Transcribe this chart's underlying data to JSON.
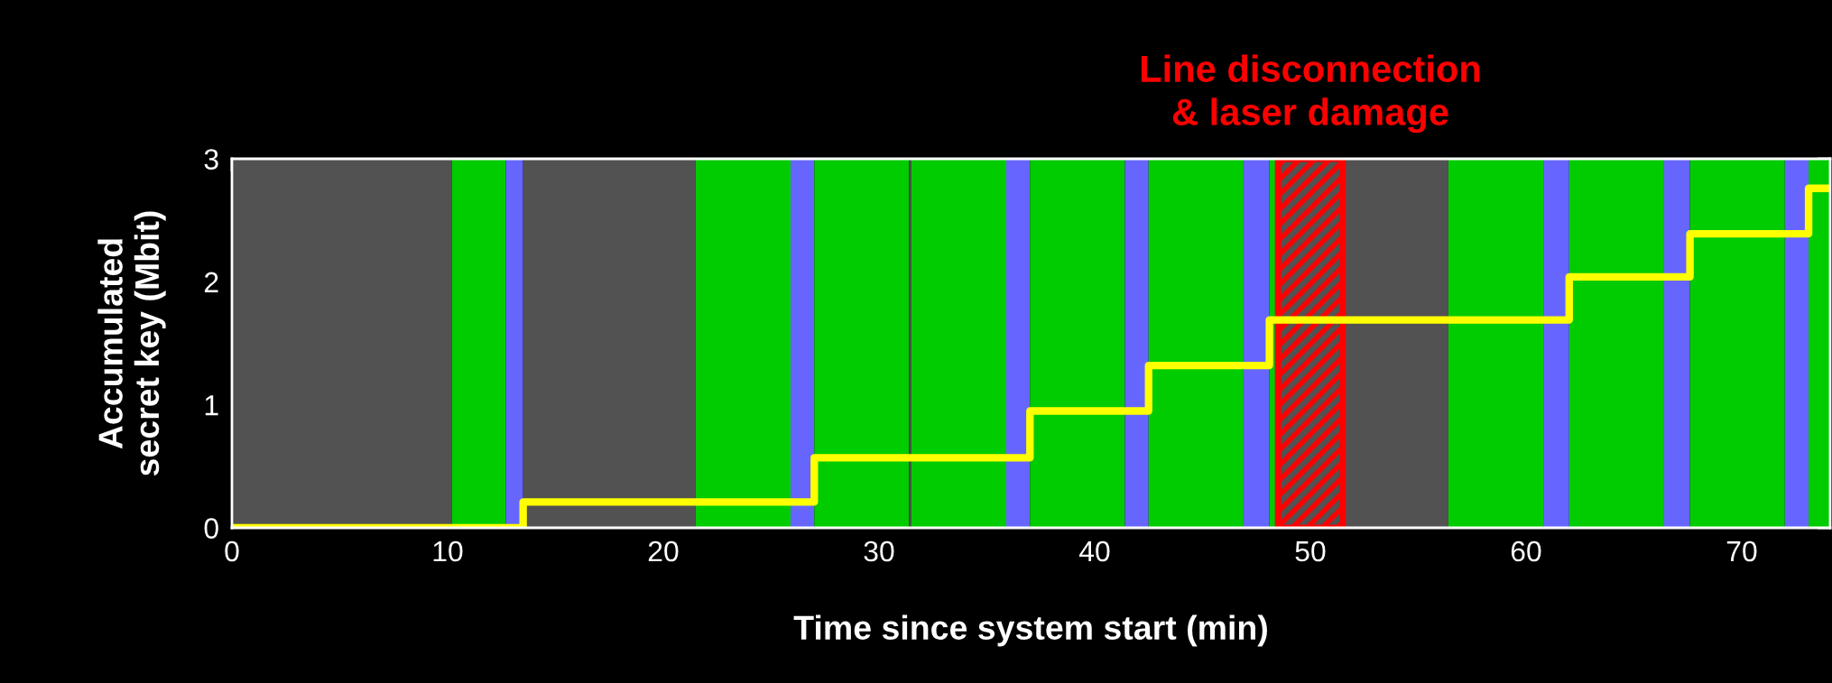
{
  "chart_data": {
    "type": "step",
    "xlabel": "Time since system start (min)",
    "ylabel": "Accumulated\nsecret key (Mbit)",
    "x": [
      0,
      13.5,
      27.0,
      37.0,
      42.5,
      48.1,
      62.0,
      67.6,
      73.1,
      74.1
    ],
    "series": [
      {
        "color": "#ffff00",
        "values": [
          0,
          0.21,
          0.57,
          0.95,
          1.32,
          1.69,
          2.04,
          2.39,
          2.76,
          2.76
        ]
      }
    ],
    "xlim": [
      0,
      74.1
    ],
    "xticks": [
      0,
      {
        "value": 5,
        "label": null
      },
      10,
      {
        "value": 15,
        "label": null
      },
      20,
      {
        "value": 25,
        "label": null
      },
      30,
      {
        "value": 35,
        "label": null
      },
      40,
      {
        "value": 45,
        "label": null
      },
      50,
      {
        "value": 55,
        "label": null
      },
      60,
      {
        "value": 65,
        "label": null
      },
      70
    ],
    "ylim": [
      0,
      3
    ],
    "yticks": [
      0,
      {
        "value": 0.5,
        "label": null
      },
      1,
      {
        "value": 1.5,
        "label": null
      },
      2,
      {
        "value": 2.5,
        "label": null
      },
      3
    ],
    "bands": [
      {
        "axis": "x",
        "from": 0,
        "to": 10.2,
        "color": "#525252"
      },
      {
        "axis": "x",
        "from": 10.2,
        "to": 12.7,
        "color": "#00cc00"
      },
      {
        "axis": "x",
        "from": 12.7,
        "to": 13.5,
        "color": "#6666ff"
      },
      {
        "axis": "x",
        "from": 13.5,
        "to": 21.5,
        "color": "#525252"
      },
      {
        "axis": "x",
        "from": 21.5,
        "to": 25.9,
        "color": "#00cc00"
      },
      {
        "axis": "x",
        "from": 25.9,
        "to": 27.0,
        "color": "#6666ff"
      },
      {
        "axis": "x",
        "from": 27.0,
        "to": 31.4,
        "color": "#00cc00"
      },
      {
        "axis": "x",
        "from": 31.4,
        "to": 31.5,
        "color": "#525252"
      },
      {
        "axis": "x",
        "from": 31.5,
        "to": 35.9,
        "color": "#00cc00"
      },
      {
        "axis": "x",
        "from": 35.9,
        "to": 37.0,
        "color": "#6666ff"
      },
      {
        "axis": "x",
        "from": 37.0,
        "to": 41.4,
        "color": "#00cc00"
      },
      {
        "axis": "x",
        "from": 41.4,
        "to": 42.5,
        "color": "#6666ff"
      },
      {
        "axis": "x",
        "from": 42.5,
        "to": 46.9,
        "color": "#00cc00"
      },
      {
        "axis": "x",
        "from": 46.9,
        "to": 48.1,
        "color": "#6666ff"
      },
      {
        "axis": "x",
        "from": 48.1,
        "to": 48.5,
        "color": "#00cc00"
      },
      {
        "axis": "x",
        "from": 48.5,
        "to": 56.4,
        "color": "#525252"
      },
      {
        "axis": "x",
        "from": 56.4,
        "to": 60.8,
        "color": "#00cc00"
      },
      {
        "axis": "x",
        "from": 60.8,
        "to": 62.0,
        "color": "#6666ff"
      },
      {
        "axis": "x",
        "from": 62.0,
        "to": 66.4,
        "color": "#00cc00"
      },
      {
        "axis": "x",
        "from": 66.4,
        "to": 67.6,
        "color": "#6666ff"
      },
      {
        "axis": "x",
        "from": 67.6,
        "to": 72.0,
        "color": "#00cc00"
      },
      {
        "axis": "x",
        "from": 72.0,
        "to": 73.1,
        "color": "#6666ff"
      },
      {
        "axis": "x",
        "from": 73.1,
        "to": 74.1,
        "color": "#00cc00"
      },
      {
        "axis": "x",
        "from": 48.5,
        "to": 51.5,
        "color": "#ff0000",
        "label": "Line disconnection\n& laser damage"
      }
    ],
    "grid": false,
    "legend": false
  }
}
